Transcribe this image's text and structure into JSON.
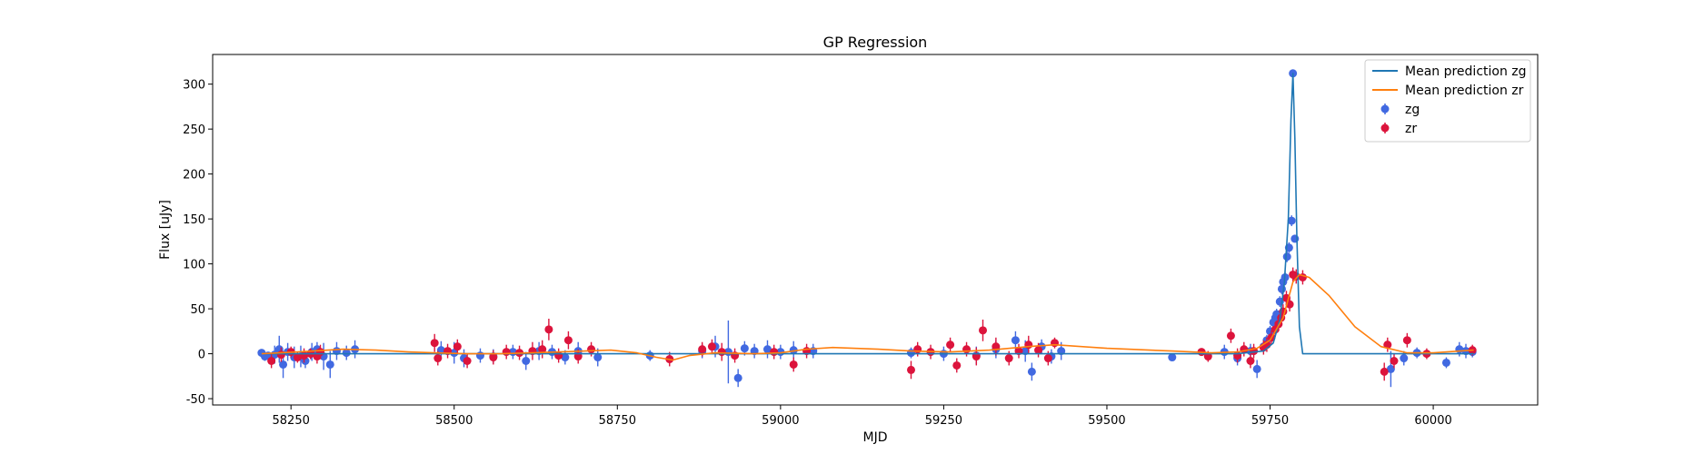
{
  "chart_data": {
    "type": "scatter",
    "title": "GP Regression",
    "xlabel": "MJD",
    "ylabel": "Flux [uJy]",
    "xlim": [
      58130,
      60160
    ],
    "ylim": [
      -57,
      333
    ],
    "xticks": [
      58250,
      58500,
      58750,
      59000,
      59250,
      59500,
      59750,
      60000
    ],
    "yticks": [
      -50,
      0,
      50,
      100,
      150,
      200,
      250,
      300
    ],
    "legend_position": "top-right",
    "lines": [
      {
        "name": "Mean prediction zg",
        "color": "#1f77b4",
        "x": [
          58205,
          58360,
          58380,
          58720,
          58735,
          59700,
          59740,
          59755,
          59765,
          59772,
          59778,
          59782,
          59785,
          59788,
          59791,
          59795,
          59800,
          60062
        ],
        "y": [
          0,
          0,
          0,
          0,
          0,
          0,
          3,
          12,
          38,
          80,
          150,
          260,
          312,
          240,
          130,
          30,
          0,
          0
        ]
      },
      {
        "name": "Mean prediction zr",
        "color": "#ff7f0e",
        "x": [
          58205,
          58260,
          58330,
          58380,
          58430,
          58470,
          58520,
          58570,
          58620,
          58660,
          58700,
          58740,
          58780,
          58810,
          58835,
          58860,
          58900,
          58960,
          59000,
          59040,
          59080,
          59150,
          59200,
          59260,
          59320,
          59380,
          59420,
          59500,
          59600,
          59660,
          59700,
          59730,
          59750,
          59770,
          59785,
          59795,
          59810,
          59840,
          59880,
          59920,
          59960,
          60000,
          60062
        ],
        "y": [
          0,
          2,
          5,
          4,
          2,
          1,
          0,
          0,
          1,
          2,
          3,
          4,
          1,
          -4,
          -7,
          -2,
          1,
          0,
          1,
          5,
          7,
          5,
          3,
          2,
          4,
          8,
          10,
          6,
          3,
          1,
          2,
          6,
          15,
          40,
          80,
          88,
          85,
          65,
          30,
          8,
          1,
          1,
          4
        ]
      }
    ],
    "series": [
      {
        "name": "zg",
        "color": "#4169e1",
        "x": [
          58205,
          58210,
          58215,
          58225,
          58232,
          58238,
          58245,
          58255,
          58265,
          58272,
          58282,
          58290,
          58300,
          58310,
          58320,
          58335,
          58348,
          58480,
          58500,
          58515,
          58540,
          58560,
          58590,
          58610,
          58630,
          58650,
          58670,
          58690,
          58720,
          58800,
          58880,
          58900,
          58920,
          58935,
          58945,
          58960,
          58980,
          59000,
          59020,
          59050,
          59200,
          59250,
          59300,
          59330,
          59360,
          59375,
          59385,
          59400,
          59415,
          59430,
          59600,
          59680,
          59700,
          59720,
          59730,
          59740,
          59745,
          59750,
          59755,
          59758,
          59760,
          59763,
          59765,
          59768,
          59770,
          59773,
          59776,
          59779,
          59783,
          59785,
          59788,
          59935,
          59955,
          59975,
          60020,
          60040,
          60050,
          60060
        ],
        "y": [
          1,
          -3,
          -2,
          -1,
          5,
          -12,
          2,
          -4,
          -3,
          -8,
          2,
          5,
          -3,
          -12,
          3,
          1,
          5,
          4,
          1,
          -5,
          -2,
          -3,
          2,
          -8,
          3,
          2,
          -4,
          3,
          -4,
          -2,
          3,
          8,
          2,
          -27,
          6,
          3,
          5,
          2,
          4,
          3,
          1,
          0,
          -2,
          5,
          15,
          3,
          -20,
          8,
          -3,
          3,
          -4,
          2,
          -5,
          3,
          -17,
          8,
          15,
          25,
          35,
          40,
          44,
          42,
          58,
          72,
          80,
          85,
          108,
          118,
          148,
          312,
          128,
          -17,
          -5,
          1,
          -10,
          5,
          3,
          2
        ],
        "err": [
          4,
          5,
          4,
          10,
          15,
          15,
          10,
          12,
          12,
          8,
          10,
          8,
          15,
          15,
          10,
          8,
          10,
          10,
          12,
          10,
          8,
          8,
          8,
          10,
          10,
          8,
          8,
          10,
          10,
          6,
          8,
          12,
          35,
          10,
          8,
          8,
          10,
          8,
          10,
          8,
          6,
          8,
          10,
          10,
          10,
          12,
          10,
          8,
          8,
          10,
          4,
          8,
          8,
          8,
          10,
          6,
          6,
          6,
          6,
          6,
          6,
          6,
          6,
          6,
          6,
          6,
          6,
          6,
          6,
          4,
          4,
          20,
          8,
          6,
          6,
          8,
          8,
          6
        ]
      },
      {
        "name": "zr",
        "color": "#dc143c",
        "x": [
          58220,
          58235,
          58250,
          58260,
          58270,
          58280,
          58290,
          58295,
          58470,
          58475,
          58490,
          58505,
          58520,
          58560,
          58580,
          58600,
          58620,
          58635,
          58645,
          58660,
          58675,
          58690,
          58710,
          58830,
          58880,
          58895,
          58910,
          58930,
          58990,
          59020,
          59040,
          59200,
          59210,
          59230,
          59260,
          59270,
          59285,
          59300,
          59310,
          59330,
          59350,
          59365,
          59380,
          59395,
          59410,
          59420,
          59645,
          59655,
          59690,
          59700,
          59710,
          59720,
          59725,
          59740,
          59745,
          59752,
          59758,
          59763,
          59767,
          59770,
          59775,
          59780,
          59785,
          59790,
          59800,
          59925,
          59930,
          59940,
          59960,
          59990,
          60060
        ],
        "y": [
          -8,
          -1,
          2,
          -4,
          -2,
          0,
          -3,
          2,
          12,
          -5,
          3,
          8,
          -8,
          -4,
          2,
          1,
          3,
          5,
          27,
          -2,
          15,
          -3,
          5,
          -6,
          5,
          8,
          2,
          -2,
          2,
          -12,
          3,
          -18,
          5,
          2,
          10,
          -13,
          5,
          -3,
          26,
          8,
          -5,
          3,
          10,
          4,
          -5,
          12,
          2,
          -3,
          20,
          -2,
          5,
          -8,
          3,
          7,
          10,
          18,
          27,
          33,
          40,
          47,
          62,
          55,
          88,
          86,
          85,
          -20,
          10,
          -8,
          15,
          0,
          4
        ],
        "err": [
          8,
          8,
          6,
          6,
          8,
          6,
          8,
          8,
          10,
          8,
          8,
          8,
          8,
          8,
          8,
          8,
          10,
          10,
          12,
          8,
          10,
          8,
          8,
          8,
          8,
          8,
          10,
          8,
          8,
          8,
          8,
          10,
          8,
          8,
          8,
          8,
          8,
          10,
          12,
          10,
          8,
          8,
          10,
          8,
          8,
          6,
          4,
          6,
          8,
          8,
          8,
          8,
          8,
          8,
          8,
          8,
          8,
          8,
          8,
          8,
          8,
          8,
          8,
          8,
          8,
          10,
          8,
          8,
          8,
          6,
          6
        ]
      }
    ]
  }
}
